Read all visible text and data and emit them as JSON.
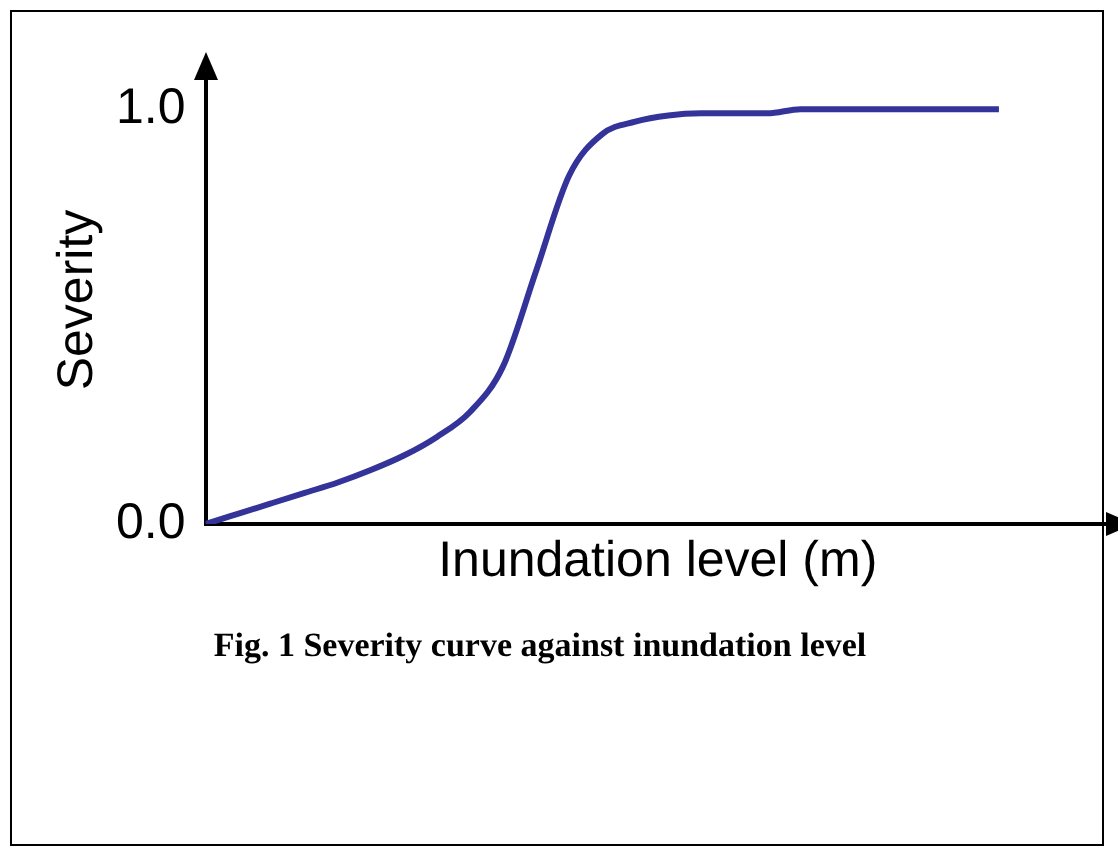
{
  "chart_data": {
    "type": "line",
    "xlabel": "Inundation level (m)",
    "ylabel": "Severity",
    "annotations": [
      "Fig. 1 Severity curve against inundation level"
    ],
    "categories": [
      null,
      null,
      null,
      null,
      null,
      null,
      null,
      null,
      null,
      null,
      null,
      null,
      null,
      null,
      null,
      null,
      null,
      null,
      null,
      null,
      null,
      null,
      null,
      null,
      null
    ],
    "series": [
      {
        "color": "#333399",
        "values": [
          0,
          0.025,
          0.05,
          0.075,
          0.1,
          0.13,
          0.165,
          0.21,
          0.27,
          0.38,
          0.61,
          0.84,
          0.94,
          0.97,
          0.985,
          0.99,
          0.99,
          0.99,
          1,
          1,
          1,
          1,
          1,
          1,
          1
        ]
      }
    ],
    "ylim": [
      0,
      1.08
    ],
    "yticks": [
      {
        "value": 0,
        "label": "0.0"
      },
      {
        "value": 1,
        "label": "1.0"
      }
    ],
    "tick_labels": "y",
    "grid": false,
    "legend": false,
    "marker": "none",
    "line_style": "solid"
  }
}
